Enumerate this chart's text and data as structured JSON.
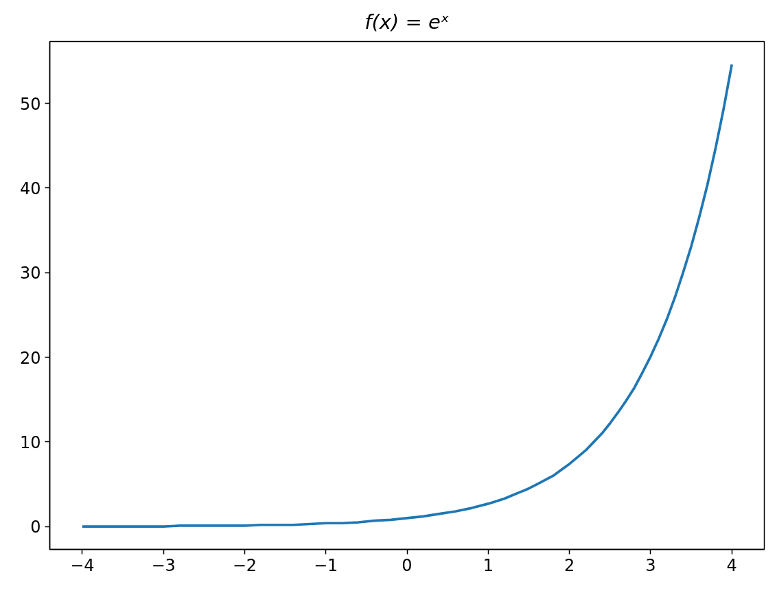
{
  "chart_data": {
    "type": "line",
    "title": "f(x) = eˣ",
    "x": [
      -4.0,
      -3.8,
      -3.6,
      -3.4,
      -3.2,
      -3.0,
      -2.8,
      -2.6,
      -2.4,
      -2.2,
      -2.0,
      -1.8,
      -1.6,
      -1.4,
      -1.2,
      -1.0,
      -0.8,
      -0.6,
      -0.4,
      -0.2,
      0.0,
      0.2,
      0.4,
      0.6,
      0.8,
      1.0,
      1.1,
      1.2,
      1.3,
      1.4,
      1.5,
      1.6,
      1.7,
      1.8,
      1.9,
      2.0,
      2.1,
      2.2,
      2.3,
      2.4,
      2.5,
      2.6,
      2.7,
      2.8,
      2.9,
      3.0,
      3.1,
      3.2,
      3.3,
      3.4,
      3.5,
      3.6,
      3.7,
      3.8,
      3.9,
      4.0
    ],
    "series": [
      {
        "color": "#1f77b4",
        "values": [
          0.0,
          0.0,
          0.0,
          0.0,
          0.0,
          0.0,
          0.1,
          0.1,
          0.1,
          0.1,
          0.1,
          0.2,
          0.2,
          0.2,
          0.3,
          0.4,
          0.4,
          0.5,
          0.7,
          0.8,
          1.0,
          1.2,
          1.5,
          1.8,
          2.2,
          2.7,
          3.0,
          3.3,
          3.7,
          4.1,
          4.5,
          5.0,
          5.5,
          6.0,
          6.7,
          7.4,
          8.2,
          9.0,
          10.0,
          11.0,
          12.2,
          13.5,
          14.9,
          16.4,
          18.2,
          20.1,
          22.2,
          24.5,
          27.1,
          30.0,
          33.1,
          36.6,
          40.4,
          44.7,
          49.4,
          54.6
        ]
      }
    ],
    "xlim": [
      -4.4,
      4.4
    ],
    "ylim": [
      -2.7,
      57.3
    ],
    "xticks": [
      {
        "value": -4,
        "label": "−4"
      },
      {
        "value": -3,
        "label": "−3"
      },
      {
        "value": -2,
        "label": "−2"
      },
      {
        "value": -1,
        "label": "−1"
      },
      0,
      1,
      2,
      3,
      4
    ],
    "yticks": [
      0,
      10,
      20,
      30,
      40,
      50
    ]
  }
}
